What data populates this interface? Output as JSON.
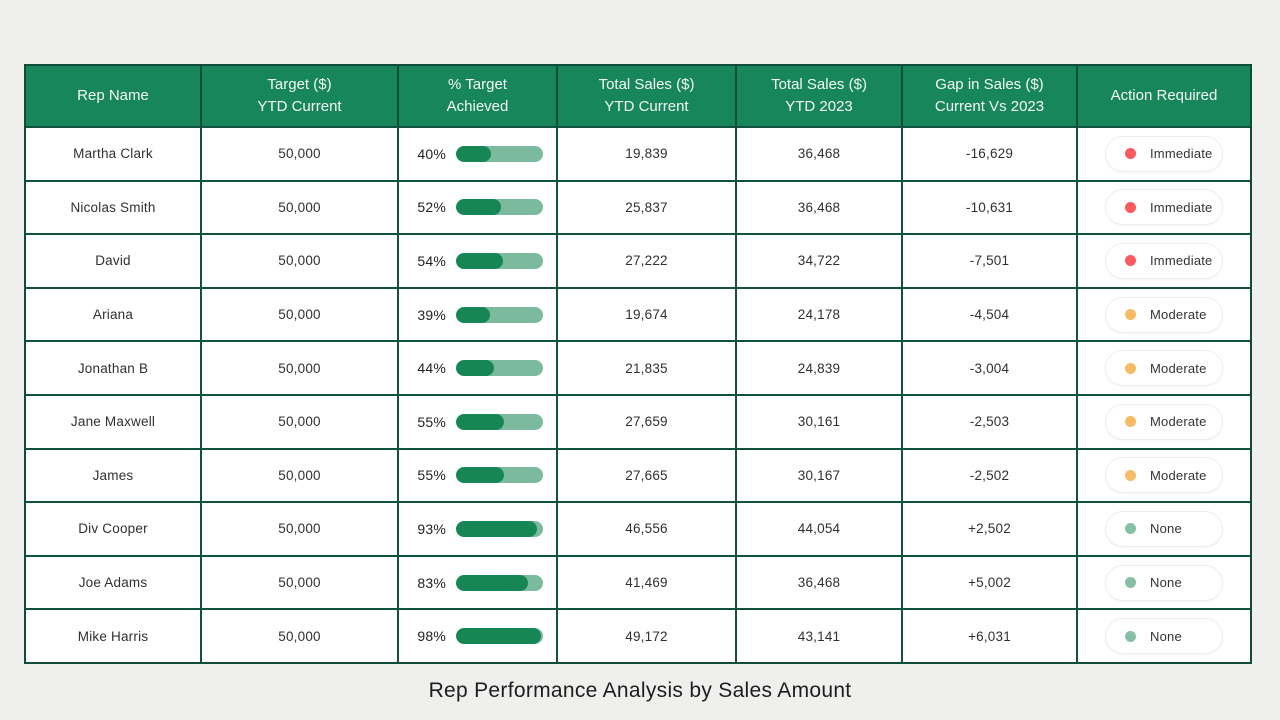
{
  "title": "Rep Performance Analysis by Sales Amount",
  "colors": {
    "header_bg": "#17865b",
    "grid_border": "#11523e",
    "bar_track": "#7cba9d",
    "bar_fill": "#178655",
    "severity": {
      "Immediate": "#fa5a5f",
      "Moderate": "#f6bb66",
      "None": "#85c0a5"
    }
  },
  "chart_data": {
    "type": "table",
    "title": "Rep Performance Analysis by Sales Amount",
    "columns": [
      "Rep Name",
      "Target ($)\nYTD Current",
      "% Target\nAchieved",
      "Total Sales ($)\nYTD Current",
      "Total Sales ($)\nYTD 2023",
      "Gap in Sales ($)\nCurrent Vs 2023",
      "Action Required"
    ],
    "rows": [
      {
        "rep": "Martha Clark",
        "target": "50,000",
        "pct": 40,
        "pct_label": "40%",
        "sales_current": "19,839",
        "sales_2023": "36,468",
        "gap": "-16,629",
        "action": "Immediate"
      },
      {
        "rep": "Nicolas Smith",
        "target": "50,000",
        "pct": 52,
        "pct_label": "52%",
        "sales_current": "25,837",
        "sales_2023": "36,468",
        "gap": "-10,631",
        "action": "Immediate"
      },
      {
        "rep": "David",
        "target": "50,000",
        "pct": 54,
        "pct_label": "54%",
        "sales_current": "27,222",
        "sales_2023": "34,722",
        "gap": "-7,501",
        "action": "Immediate"
      },
      {
        "rep": "Ariana",
        "target": "50,000",
        "pct": 39,
        "pct_label": "39%",
        "sales_current": "19,674",
        "sales_2023": "24,178",
        "gap": "-4,504",
        "action": "Moderate"
      },
      {
        "rep": "Jonathan B",
        "target": "50,000",
        "pct": 44,
        "pct_label": "44%",
        "sales_current": "21,835",
        "sales_2023": "24,839",
        "gap": "-3,004",
        "action": "Moderate"
      },
      {
        "rep": "Jane Maxwell",
        "target": "50,000",
        "pct": 55,
        "pct_label": "55%",
        "sales_current": "27,659",
        "sales_2023": "30,161",
        "gap": "-2,503",
        "action": "Moderate"
      },
      {
        "rep": "James",
        "target": "50,000",
        "pct": 55,
        "pct_label": "55%",
        "sales_current": "27,665",
        "sales_2023": "30,167",
        "gap": "-2,502",
        "action": "Moderate"
      },
      {
        "rep": "Div Cooper",
        "target": "50,000",
        "pct": 93,
        "pct_label": "93%",
        "sales_current": "46,556",
        "sales_2023": "44,054",
        "gap": "+2,502",
        "action": "None"
      },
      {
        "rep": "Joe Adams",
        "target": "50,000",
        "pct": 83,
        "pct_label": "83%",
        "sales_current": "41,469",
        "sales_2023": "36,468",
        "gap": "+5,002",
        "action": "None"
      },
      {
        "rep": "Mike Harris",
        "target": "50,000",
        "pct": 98,
        "pct_label": "98%",
        "sales_current": "49,172",
        "sales_2023": "43,141",
        "gap": "+6,031",
        "action": "None"
      }
    ]
  }
}
